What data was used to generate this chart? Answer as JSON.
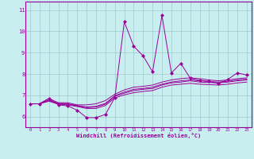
{
  "xlabel": "Windchill (Refroidissement éolien,°C)",
  "background_color": "#c8eef0",
  "line_color": "#990099",
  "grid_color": "#a0c8cc",
  "xlim": [
    -0.5,
    23.5
  ],
  "ylim": [
    5.5,
    11.4
  ],
  "xticks": [
    0,
    1,
    2,
    3,
    4,
    5,
    6,
    7,
    8,
    9,
    10,
    11,
    12,
    13,
    14,
    15,
    16,
    17,
    18,
    19,
    20,
    21,
    22,
    23
  ],
  "yticks": [
    6,
    7,
    8,
    9,
    10,
    11
  ],
  "spiky_line": [
    6.6,
    6.6,
    6.85,
    6.55,
    6.5,
    6.3,
    5.95,
    5.95,
    6.1,
    6.9,
    10.45,
    9.3,
    8.85,
    8.1,
    10.75,
    8.05,
    8.5,
    7.8,
    7.7,
    7.65,
    7.55,
    7.75,
    8.05,
    7.95
  ],
  "smooth_lines": [
    [
      6.6,
      6.6,
      6.85,
      6.65,
      6.65,
      6.55,
      6.55,
      6.6,
      6.75,
      7.05,
      7.25,
      7.38,
      7.42,
      7.48,
      7.62,
      7.72,
      7.78,
      7.82,
      7.78,
      7.72,
      7.68,
      7.72,
      7.78,
      7.82
    ],
    [
      6.6,
      6.6,
      6.75,
      6.6,
      6.58,
      6.5,
      6.42,
      6.45,
      6.58,
      6.95,
      7.1,
      7.22,
      7.28,
      7.32,
      7.48,
      7.58,
      7.62,
      7.68,
      7.62,
      7.6,
      7.58,
      7.62,
      7.68,
      7.72
    ],
    [
      6.6,
      6.6,
      6.72,
      6.58,
      6.55,
      6.47,
      6.38,
      6.38,
      6.52,
      6.88,
      7.02,
      7.12,
      7.18,
      7.22,
      7.38,
      7.48,
      7.52,
      7.56,
      7.52,
      7.5,
      7.48,
      7.52,
      7.58,
      7.62
    ],
    [
      6.6,
      6.6,
      6.78,
      6.62,
      6.6,
      6.52,
      6.45,
      6.48,
      6.62,
      6.98,
      7.15,
      7.28,
      7.32,
      7.38,
      7.52,
      7.62,
      7.68,
      7.72,
      7.68,
      7.65,
      7.62,
      7.66,
      7.72,
      7.76
    ]
  ]
}
